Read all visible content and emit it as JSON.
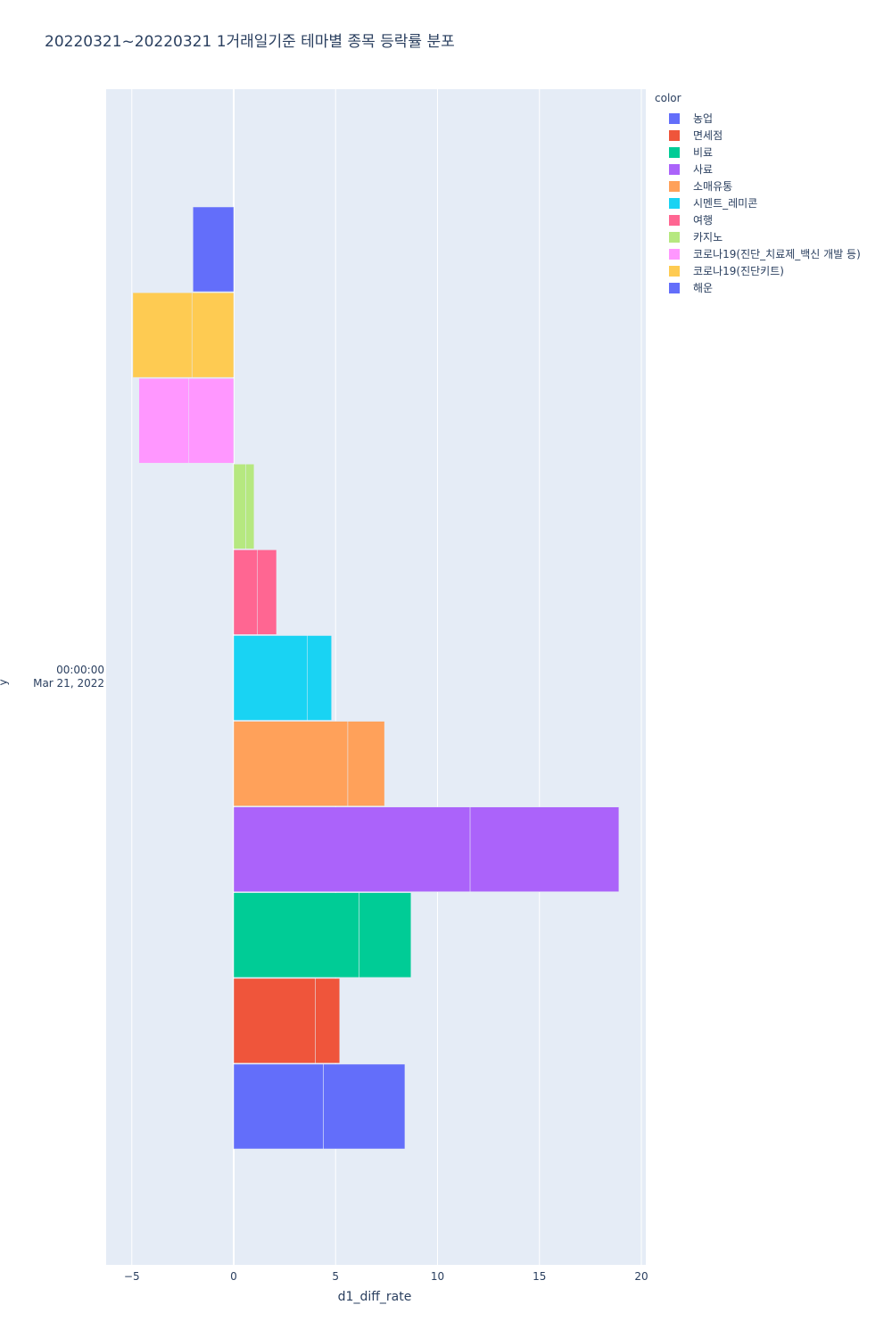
{
  "title": "20220321~20220321 1거래일기준 테마별 종목 등락률 분포",
  "chart_data": {
    "type": "bar",
    "orientation": "horizontal",
    "stacked": true,
    "title": "20220321~20220321 1거래일기준 테마별 종목 등락률 분포",
    "xlabel": "d1_diff_rate",
    "ylabel": "y",
    "xlim": [
      -6.2,
      20.3
    ],
    "x_ticks": [
      "−5",
      "0",
      "5",
      "10",
      "15",
      "20"
    ],
    "y_tick_label": [
      "00:00:00",
      "Mar 21, 2022"
    ],
    "legend_title": "color",
    "legend_position": "right",
    "grid": true,
    "series": [
      {
        "name": "해운",
        "color": "#636efa",
        "segments": [
          4.4,
          4.0
        ]
      },
      {
        "name": "면세점",
        "color": "#EF553B",
        "segments": [
          4.0,
          1.2
        ]
      },
      {
        "name": "비료",
        "color": "#00cc96",
        "segments": [
          6.15,
          2.55
        ]
      },
      {
        "name": "사료",
        "color": "#ab63fa",
        "segments": [
          11.6,
          7.3
        ]
      },
      {
        "name": "소매유통",
        "color": "#FFA15A",
        "segments": [
          5.6,
          1.8
        ]
      },
      {
        "name": "시멘트_레미콘",
        "color": "#19d3f3",
        "segments": [
          3.6,
          1.2
        ]
      },
      {
        "name": "여행",
        "color": "#FF6692",
        "segments": [
          1.15,
          0.95
        ]
      },
      {
        "name": "카지노",
        "color": "#B6E880",
        "segments": [
          0.6,
          0.4
        ]
      },
      {
        "name": "코로나19(진단_치료제_백신 개발 등)",
        "color": "#FF97FF",
        "segments": [
          -2.2,
          -2.45
        ]
      },
      {
        "name": "코로나19(진단키트)",
        "color": "#FECB52",
        "segments": [
          -2.05,
          -2.9
        ]
      },
      {
        "name": "농업",
        "color": "#636efa",
        "segments": [
          -2.0
        ]
      }
    ]
  },
  "legend_order": [
    "농업",
    "면세점",
    "비료",
    "사료",
    "소매유통",
    "시멘트_레미콘",
    "여행",
    "카지노",
    "코로나19(진단_치료제_백신 개발 등)",
    "코로나19(진단키트)",
    "해운"
  ]
}
